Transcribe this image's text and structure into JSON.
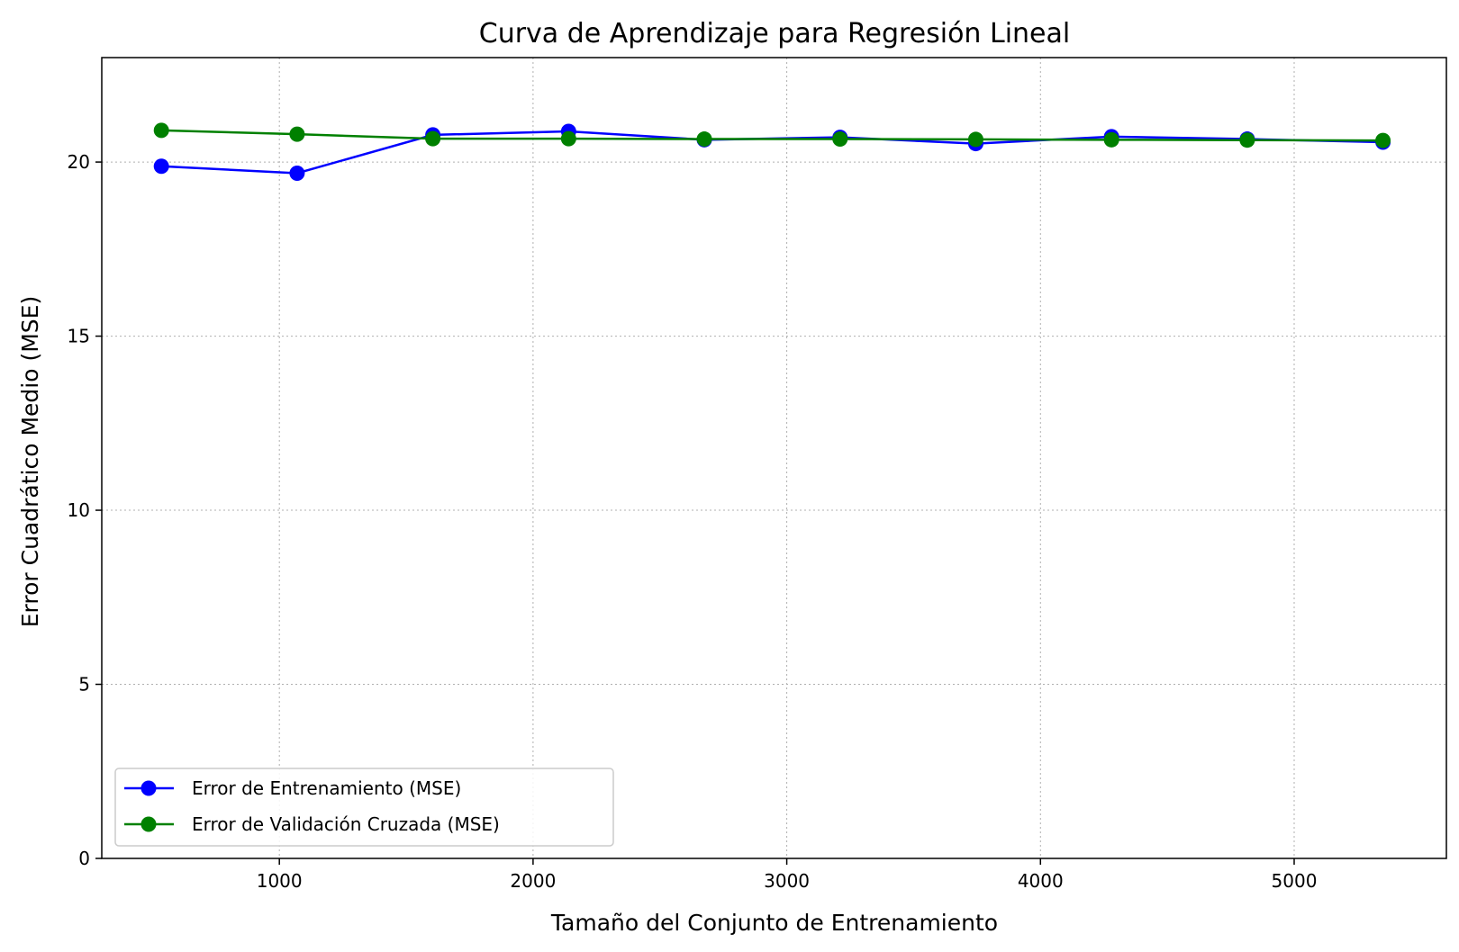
{
  "chart_data": {
    "type": "line",
    "title": "Curva de Aprendizaje para Regresión Lineal",
    "xlabel": "Tamaño del Conjunto de Entrenamiento",
    "ylabel": "Error Cuadrático Medio (MSE)",
    "xlim": [
      300,
      5600
    ],
    "ylim": [
      0,
      23
    ],
    "xticks": [
      1000,
      2000,
      3000,
      4000,
      5000
    ],
    "yticks": [
      0,
      5,
      10,
      15,
      20
    ],
    "grid": true,
    "legend_position": "lower-left",
    "x": [
      535,
      1070,
      1605,
      2140,
      2675,
      3210,
      3745,
      4280,
      4815,
      5350
    ],
    "series": [
      {
        "name": "Error de Entrenamiento (MSE)",
        "color": "#0000ff",
        "marker": "circle",
        "values": [
          19.88,
          19.68,
          20.78,
          20.88,
          20.64,
          20.71,
          20.53,
          20.73,
          20.66,
          20.57
        ]
      },
      {
        "name": "Error de Validación Cruzada (MSE)",
        "color": "#008000",
        "marker": "circle",
        "values": [
          20.91,
          20.8,
          20.67,
          20.67,
          20.66,
          20.66,
          20.65,
          20.64,
          20.63,
          20.62
        ]
      }
    ]
  }
}
